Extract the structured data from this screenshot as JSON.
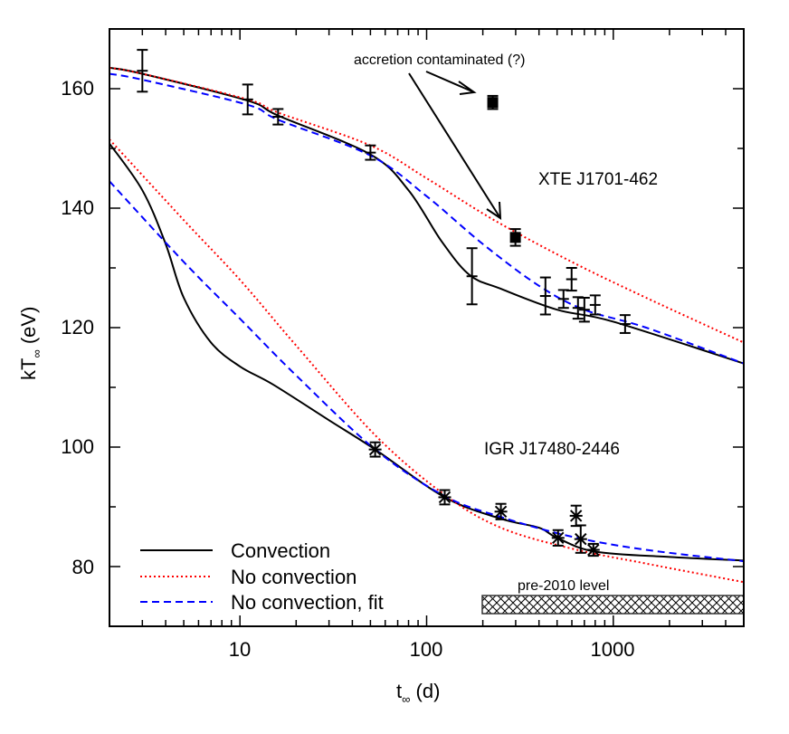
{
  "chart_data": {
    "type": "line",
    "title": "",
    "xlabel": "t∞ (d)",
    "ylabel": "kT∞ (eV)",
    "xscale": "log",
    "xlim": [
      2,
      5000
    ],
    "ylim": [
      70,
      170
    ],
    "x_ticks": [
      10,
      100,
      1000
    ],
    "x_tick_labels": [
      "10",
      "100",
      "1000"
    ],
    "y_ticks": [
      80,
      100,
      120,
      140,
      160
    ],
    "y_tick_labels": [
      "80",
      "100",
      "120",
      "140",
      "160"
    ],
    "grid": false,
    "legend_position": "lower left",
    "legend": [
      {
        "label": "Convection",
        "color": "#000000",
        "style": "solid"
      },
      {
        "label": "No convection",
        "color": "#ff0000",
        "style": "dotted"
      },
      {
        "label": "No convection, fit",
        "color": "#0000ff",
        "style": "dashed"
      }
    ],
    "annotations": [
      {
        "text": "accretion contaminated (?)",
        "x": 60,
        "y": 165
      },
      {
        "text": "XTE J1701-462",
        "x": 900,
        "y": 145
      },
      {
        "text": "IGR J17480-2446",
        "x": 700,
        "y": 100
      },
      {
        "text": "pre-2010 level",
        "x": 700,
        "y": 77
      }
    ],
    "pre2010_band": {
      "x_range": [
        200,
        5000
      ],
      "y_range": [
        72,
        75
      ],
      "label": "pre-2010 level"
    },
    "series": [
      {
        "name": "XTE J1701-462 data",
        "marker": "errorbar",
        "x": [
          3,
          11,
          16,
          50,
          175,
          433,
          541,
          598,
          647,
          700,
          800,
          1157
        ],
        "y": [
          163.0,
          158.2,
          155.3,
          149.3,
          128.6,
          125.3,
          124.8,
          128.1,
          123.3,
          123.0,
          123.8,
          120.6
        ],
        "yerr": [
          3.5,
          2.5,
          1.3,
          1.2,
          4.7,
          3.1,
          1.5,
          1.9,
          1.8,
          2.0,
          1.6,
          1.5
        ]
      },
      {
        "name": "XTE J1701-462 accretion contaminated",
        "marker": "filled-square",
        "x": [
          226,
          299
        ],
        "y": [
          157.7,
          135.1
        ],
        "yerr": [
          1.1,
          1.4
        ]
      },
      {
        "name": "IGR J17480-2446 data",
        "marker": "asterisk",
        "x": [
          53,
          125,
          250,
          506,
          632,
          669,
          782
        ],
        "y": [
          99.6,
          91.6,
          89.2,
          84.8,
          88.5,
          84.6,
          82.8
        ],
        "yerr": [
          1.2,
          1.2,
          1.3,
          1.3,
          1.7,
          2.3,
          1.0
        ]
      },
      {
        "name": "XTE Convection",
        "color": "#000000",
        "style": "solid",
        "x": [
          2,
          3,
          11,
          16,
          50,
          80,
          120,
          170,
          250,
          500,
          1000,
          5000
        ],
        "y": [
          163.5,
          162.5,
          158.0,
          155.5,
          149.0,
          143.0,
          134.5,
          128.8,
          126.5,
          123.0,
          121.0,
          114.0
        ]
      },
      {
        "name": "XTE No convection",
        "color": "#ff0000",
        "style": "dotted",
        "x": [
          2,
          3,
          11,
          16,
          50,
          100,
          230,
          600,
          1500,
          5000
        ],
        "y": [
          163.5,
          162.5,
          158.2,
          156.0,
          150.5,
          145.0,
          138.0,
          131.0,
          125.0,
          117.5
        ]
      },
      {
        "name": "XTE No convection, fit",
        "color": "#0000ff",
        "style": "dashed",
        "x": [
          2,
          3,
          11,
          16,
          50,
          100,
          200,
          400,
          700,
          1500,
          5000
        ],
        "y": [
          162.5,
          161.5,
          157.3,
          154.8,
          148.8,
          142.0,
          134.0,
          127.0,
          123.0,
          120.0,
          114.0
        ]
      },
      {
        "name": "IGR Convection",
        "color": "#000000",
        "style": "solid",
        "x": [
          2,
          3,
          4,
          5,
          7,
          10,
          15,
          30,
          53,
          125,
          250,
          400,
          500,
          800,
          2000,
          5000
        ],
        "y": [
          150.8,
          143.0,
          134.0,
          125.0,
          117.5,
          113.5,
          110.5,
          104.5,
          99.6,
          91.6,
          88.0,
          86.5,
          84.8,
          82.5,
          81.6,
          81.0
        ]
      },
      {
        "name": "IGR No convection",
        "color": "#ff0000",
        "style": "dotted",
        "x": [
          2,
          5,
          10,
          20,
          53,
          125,
          250,
          600,
          1500,
          5000
        ],
        "y": [
          151.5,
          138.0,
          128.0,
          117.0,
          102.0,
          92.0,
          86.5,
          83.0,
          80.5,
          77.4
        ]
      },
      {
        "name": "IGR No convection, fit",
        "color": "#0000ff",
        "style": "dashed",
        "x": [
          2,
          5,
          10,
          20,
          53,
          125,
          250,
          600,
          1500,
          5000
        ],
        "y": [
          144.5,
          131.0,
          121.5,
          112.0,
          99.6,
          91.8,
          88.3,
          85.0,
          82.8,
          80.9
        ]
      }
    ]
  },
  "labels": {
    "ylabel_main": "kT",
    "ylabel_sub": "∞",
    "ylabel_unit": " (eV)",
    "xlabel_main": "t",
    "xlabel_sub": "∞",
    "xlabel_unit": " (d)",
    "annotation": "accretion contaminated (?)",
    "xte": "XTE J1701-462",
    "igr": "IGR J17480-2446",
    "pre2010": "pre-2010 level",
    "legend_0": "Convection",
    "legend_1": "No convection",
    "legend_2": "No convection, fit",
    "xtick_0": "10",
    "xtick_1": "100",
    "xtick_2": "1000",
    "ytick_0": "80",
    "ytick_1": "100",
    "ytick_2": "120",
    "ytick_3": "140",
    "ytick_4": "160"
  }
}
